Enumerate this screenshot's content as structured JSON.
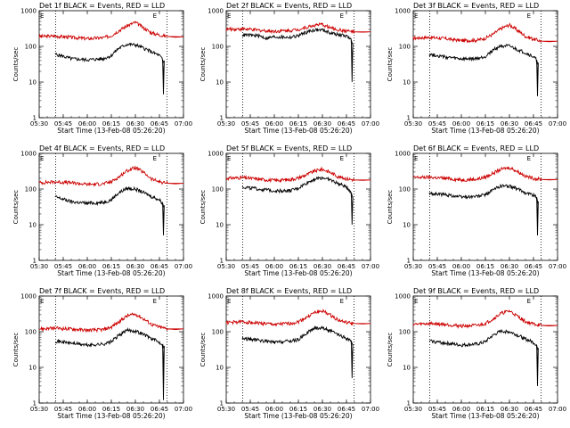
{
  "chart_data": {
    "type": "line",
    "layout": "3x3 grid",
    "xlabel": "Start Time (13-Feb-08 05:26:20)",
    "ylabel": "Counts/sec",
    "x_tick_labels": [
      "05:30",
      "05:45",
      "06:00",
      "06:15",
      "06:30",
      "06:45",
      "07:00"
    ],
    "y_tick_labels": [
      "1",
      "10",
      "100",
      "1000"
    ],
    "y_scale": "log",
    "ylim": [
      1,
      1000
    ],
    "xlim_minutes_after_0500": [
      30,
      120
    ],
    "marker_letters": [
      "E",
      "E"
    ],
    "vertical_dotted_markers_minutes_after_0500": [
      40.3,
      109.8
    ],
    "series_colors": {
      "events": "#000000",
      "lld": "#cc0000"
    },
    "panels": [
      {
        "title": "Det 1f BLACK = Events, RED = LLD",
        "lld": {
          "x": [
            30,
            40,
            50,
            60,
            70,
            75,
            80,
            85,
            90,
            95,
            100,
            105,
            110,
            115,
            120
          ],
          "y": [
            190,
            195,
            180,
            165,
            175,
            200,
            280,
            380,
            470,
            330,
            240,
            210,
            190,
            180,
            185
          ]
        },
        "events": {
          "x": [
            40,
            50,
            60,
            70,
            75,
            80,
            85,
            90,
            95,
            100,
            105,
            107,
            107.5,
            108
          ],
          "y": [
            60,
            45,
            42,
            45,
            55,
            90,
            115,
            110,
            90,
            70,
            55,
            42,
            4.5,
            40
          ]
        }
      },
      {
        "title": "Det 2f BLACK = Events, RED = LLD",
        "lld": {
          "x": [
            30,
            40,
            50,
            60,
            70,
            75,
            80,
            85,
            90,
            95,
            100,
            105,
            110,
            115,
            120
          ],
          "y": [
            300,
            310,
            285,
            265,
            280,
            300,
            340,
            390,
            410,
            330,
            290,
            270,
            255,
            250,
            255
          ]
        },
        "events": {
          "x": [
            40,
            50,
            55,
            60,
            70,
            75,
            80,
            85,
            90,
            95,
            100,
            105,
            108,
            108.5,
            109
          ],
          "y": [
            210,
            200,
            170,
            185,
            180,
            200,
            250,
            290,
            290,
            240,
            210,
            200,
            150,
            10,
            120
          ]
        }
      },
      {
        "title": "Det 3f BLACK = Events, RED = LLD",
        "lld": {
          "x": [
            30,
            40,
            50,
            60,
            70,
            75,
            80,
            85,
            90,
            95,
            100,
            105,
            110,
            115,
            120
          ],
          "y": [
            170,
            180,
            165,
            145,
            150,
            170,
            220,
            320,
            400,
            280,
            190,
            160,
            140,
            135,
            140
          ]
        },
        "events": {
          "x": [
            40,
            50,
            60,
            70,
            75,
            80,
            85,
            90,
            95,
            100,
            105,
            107,
            107.5,
            108
          ],
          "y": [
            60,
            50,
            44,
            45,
            52,
            80,
            105,
            100,
            80,
            65,
            50,
            42,
            4,
            35
          ]
        }
      },
      {
        "title": "Det 4f BLACK = Events, RED = LLD",
        "lld": {
          "x": [
            30,
            40,
            50,
            60,
            70,
            75,
            80,
            85,
            90,
            95,
            100,
            105,
            110,
            115,
            120
          ],
          "y": [
            150,
            160,
            150,
            135,
            140,
            160,
            220,
            330,
            400,
            290,
            190,
            160,
            145,
            140,
            145
          ]
        },
        "events": {
          "x": [
            40,
            50,
            60,
            70,
            75,
            80,
            85,
            90,
            95,
            100,
            105,
            107,
            107.5,
            108
          ],
          "y": [
            60,
            44,
            40,
            42,
            50,
            80,
            105,
            100,
            80,
            62,
            50,
            40,
            5,
            35
          ]
        }
      },
      {
        "title": "Det 5f BLACK = Events, RED = LLD",
        "lld": {
          "x": [
            30,
            40,
            50,
            60,
            70,
            75,
            80,
            85,
            90,
            95,
            100,
            105,
            110,
            115,
            120
          ],
          "y": [
            200,
            210,
            190,
            175,
            185,
            205,
            250,
            320,
            360,
            290,
            220,
            195,
            180,
            175,
            180
          ]
        },
        "events": {
          "x": [
            40,
            50,
            60,
            70,
            75,
            80,
            85,
            90,
            95,
            100,
            105,
            108,
            108.5,
            109
          ],
          "y": [
            115,
            100,
            90,
            90,
            105,
            145,
            190,
            210,
            180,
            140,
            115,
            80,
            10,
            60
          ]
        }
      },
      {
        "title": "Det 6f BLACK = Events, RED = LLD",
        "lld": {
          "x": [
            30,
            40,
            50,
            60,
            70,
            75,
            80,
            85,
            90,
            95,
            100,
            105,
            110,
            115,
            120
          ],
          "y": [
            210,
            215,
            200,
            180,
            190,
            215,
            280,
            360,
            400,
            310,
            230,
            200,
            185,
            180,
            185
          ]
        },
        "events": {
          "x": [
            40,
            50,
            60,
            70,
            75,
            80,
            85,
            90,
            95,
            100,
            105,
            107,
            107.5,
            108
          ],
          "y": [
            75,
            70,
            60,
            62,
            70,
            95,
            125,
            120,
            100,
            80,
            68,
            60,
            5,
            45
          ]
        }
      },
      {
        "title": "Det 7f BLACK = Events, RED = LLD",
        "lld": {
          "x": [
            30,
            40,
            50,
            60,
            70,
            75,
            80,
            85,
            90,
            95,
            100,
            105,
            110,
            115,
            120
          ],
          "y": [
            120,
            125,
            120,
            110,
            115,
            135,
            190,
            280,
            310,
            230,
            160,
            135,
            120,
            115,
            120
          ]
        },
        "events": {
          "x": [
            40,
            50,
            60,
            70,
            75,
            80,
            85,
            90,
            95,
            100,
            105,
            107,
            107.5,
            108
          ],
          "y": [
            55,
            48,
            42,
            45,
            52,
            80,
            110,
            105,
            85,
            65,
            50,
            45,
            1.2,
            40
          ]
        }
      },
      {
        "title": "Det 8f BLACK = Events, RED = LLD",
        "lld": {
          "x": [
            30,
            40,
            50,
            60,
            70,
            75,
            80,
            85,
            90,
            95,
            100,
            105,
            110,
            115,
            120
          ],
          "y": [
            180,
            190,
            175,
            160,
            170,
            190,
            250,
            340,
            380,
            290,
            210,
            180,
            170,
            165,
            170
          ]
        },
        "events": {
          "x": [
            40,
            50,
            60,
            70,
            75,
            80,
            85,
            90,
            95,
            100,
            105,
            108,
            108.5,
            109
          ],
          "y": [
            65,
            58,
            50,
            55,
            60,
            90,
            125,
            130,
            105,
            80,
            65,
            55,
            5,
            45
          ]
        }
      },
      {
        "title": "Det 9f BLACK = Events, RED = LLD",
        "lld": {
          "x": [
            30,
            40,
            50,
            60,
            70,
            75,
            80,
            85,
            90,
            95,
            100,
            105,
            110,
            115,
            120
          ],
          "y": [
            160,
            170,
            160,
            145,
            150,
            170,
            230,
            330,
            380,
            270,
            190,
            165,
            150,
            145,
            150
          ]
        },
        "events": {
          "x": [
            40,
            50,
            60,
            70,
            75,
            80,
            85,
            90,
            95,
            100,
            105,
            107,
            107.5,
            108
          ],
          "y": [
            55,
            48,
            42,
            45,
            52,
            80,
            105,
            100,
            80,
            62,
            50,
            42,
            3,
            35
          ]
        }
      }
    ]
  }
}
